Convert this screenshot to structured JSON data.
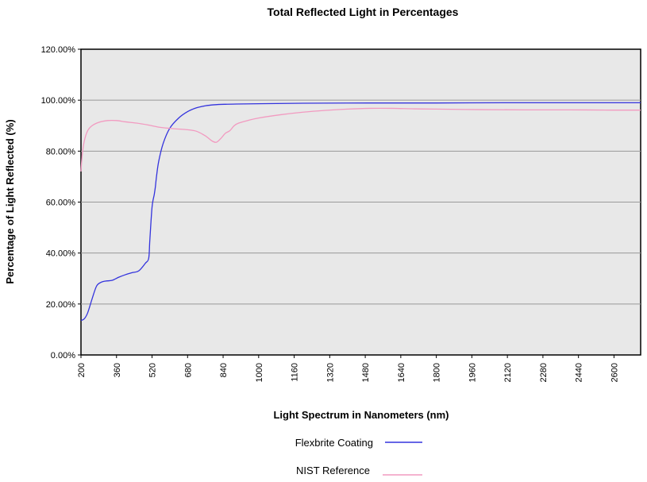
{
  "chart_data": {
    "type": "line",
    "title": "Total Reflected Light in Percentages",
    "xlabel": "Light Spectrum in Nanometers (nm)",
    "ylabel": "Percentage of Light Reflected (%)",
    "xlim": [
      200,
      2720
    ],
    "ylim": [
      0,
      120
    ],
    "x_ticks": [
      200,
      360,
      520,
      680,
      840,
      1000,
      1160,
      1320,
      1480,
      1640,
      1800,
      1960,
      2120,
      2280,
      2440,
      2600
    ],
    "x_tick_labels": [
      "200",
      "360",
      "520",
      "680",
      "840",
      "1000",
      "1160",
      "1320",
      "1480",
      "1640",
      "1800",
      "1960",
      "2120",
      "2280",
      "2440",
      "2600"
    ],
    "y_ticks": [
      0,
      20,
      40,
      60,
      80,
      100,
      120
    ],
    "y_tick_labels": [
      "0.00%",
      "20.00%",
      "40.00%",
      "60.00%",
      "80.00%",
      "100.00%",
      "120.00%"
    ],
    "grid": "horizontal",
    "legend_position": "bottom",
    "plot_background": "#e8e8e8",
    "series": [
      {
        "name": "Flexbrite Coating",
        "color": "#3333dd",
        "x": [
          200,
          215,
          230,
          250,
          270,
          290,
          310,
          340,
          370,
          400,
          430,
          460,
          490,
          505,
          510,
          520,
          530,
          535,
          540,
          550,
          570,
          600,
          640,
          680,
          720,
          760,
          800,
          850,
          900,
          1000,
          1200,
          1500,
          1800,
          2100,
          2400,
          2720
        ],
        "y": [
          13.5,
          14.2,
          16.5,
          22,
          27,
          28.5,
          29,
          29.3,
          30.5,
          31.5,
          32.3,
          33,
          36,
          38,
          45,
          58,
          63,
          66,
          70,
          76,
          83,
          89,
          93,
          95.5,
          97,
          97.8,
          98.2,
          98.4,
          98.5,
          98.6,
          98.8,
          98.9,
          98.9,
          99,
          99,
          99
        ]
      },
      {
        "name": "NIST Reference",
        "color": "#f29ac0",
        "x": [
          200,
          205,
          215,
          230,
          250,
          280,
          320,
          360,
          400,
          450,
          500,
          560,
          620,
          680,
          720,
          760,
          790,
          810,
          830,
          850,
          870,
          890,
          910,
          950,
          1000,
          1100,
          1200,
          1300,
          1400,
          1500,
          1600,
          1700,
          1800,
          2000,
          2200,
          2400,
          2600,
          2720
        ],
        "y": [
          72,
          78,
          84,
          88,
          90,
          91.3,
          92,
          92,
          91.5,
          91,
          90.3,
          89.3,
          88.8,
          88.4,
          87.8,
          86,
          84,
          83.5,
          85,
          87,
          88,
          90,
          91,
          92,
          93,
          94.3,
          95.3,
          96,
          96.5,
          96.8,
          96.8,
          96.6,
          96.5,
          96.3,
          96.2,
          96.2,
          96.1,
          96.1
        ]
      }
    ]
  }
}
